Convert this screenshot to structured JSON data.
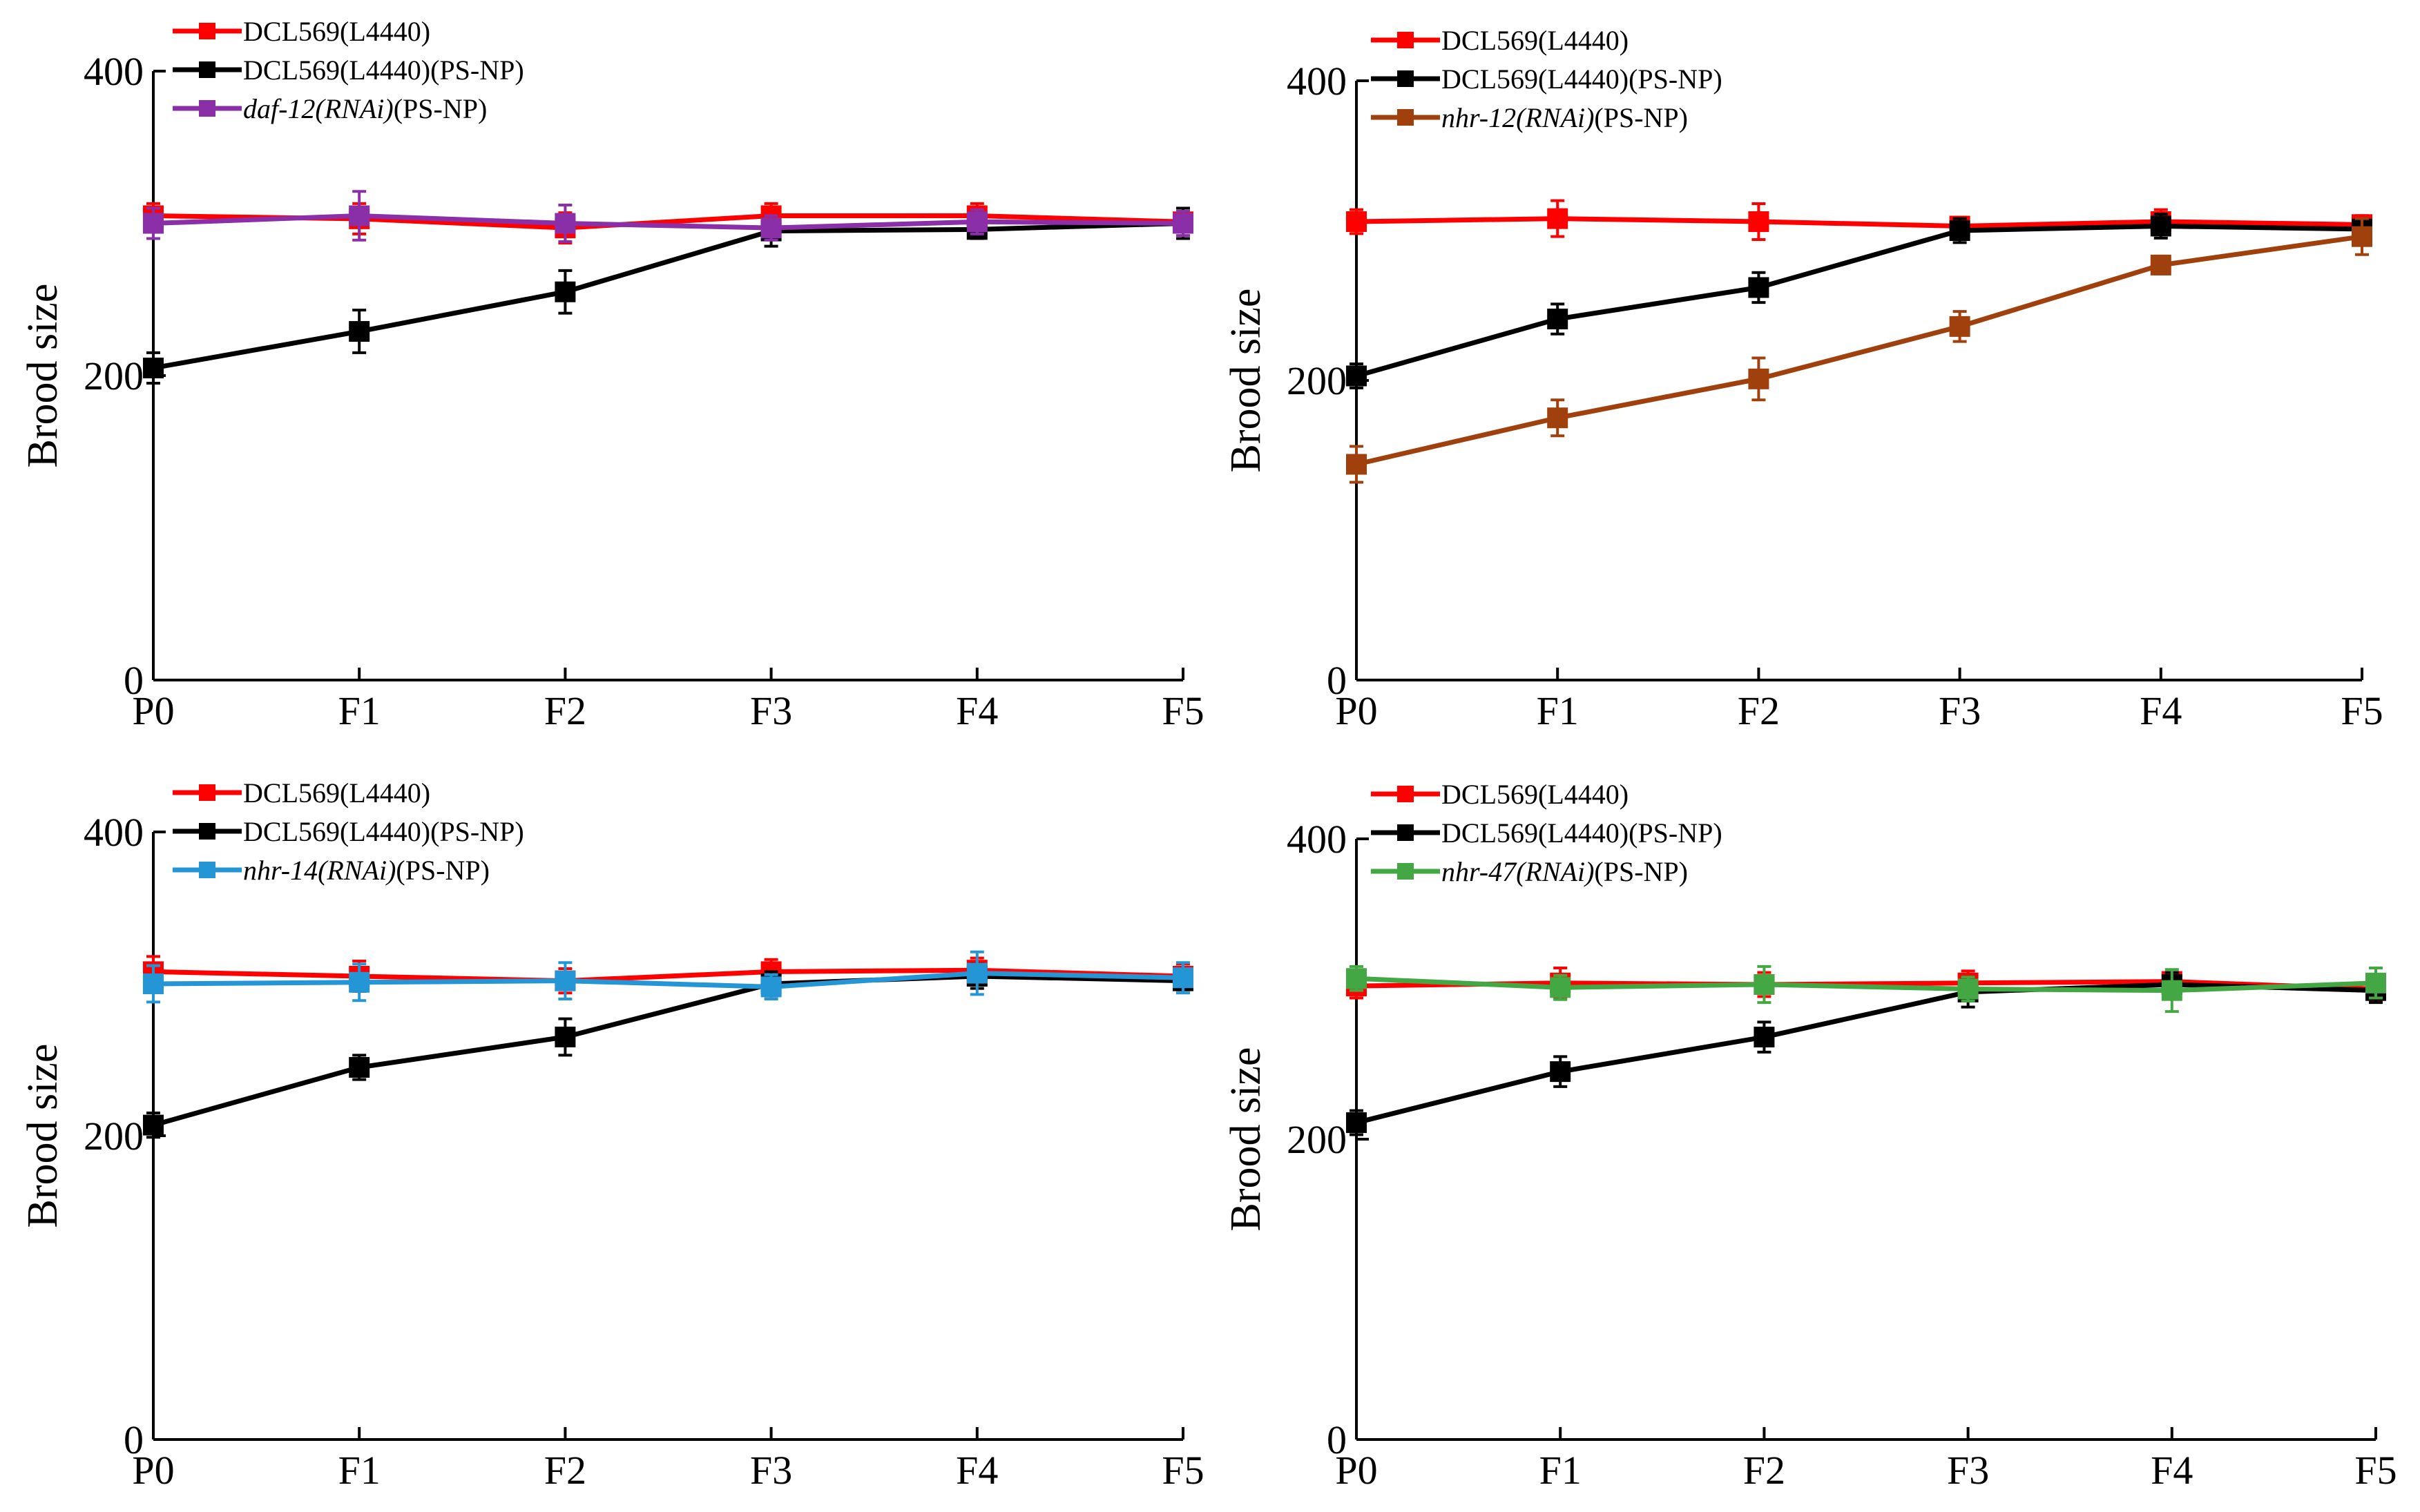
{
  "colors": {
    "control": "#ff0000",
    "psnp": "#000000",
    "daf12": "#8b2fa8",
    "nhr12": "#a0410d",
    "nhr14": "#2496d6",
    "nhr47": "#43a843"
  },
  "chart_data": [
    {
      "type": "line",
      "categories": [
        "P0",
        "F1",
        "F2",
        "F3",
        "F4",
        "F5"
      ],
      "ylabel": "Brood size",
      "ylim": [
        0,
        400
      ],
      "yticks": [
        0,
        200,
        400
      ],
      "grid": false,
      "legend_position": "top-left",
      "series": [
        {
          "name": "DCL569(L4440)",
          "name_italic": "",
          "name_rest": "DCL569(L4440)",
          "color": "#ff0000",
          "values": [
            305,
            303,
            297,
            305,
            305,
            301
          ],
          "errors": [
            8,
            10,
            10,
            8,
            8,
            6
          ]
        },
        {
          "name": "DCL569(L4440)(PS-NP)",
          "name_italic": "",
          "name_rest": "DCL569(L4440)(PS-NP)",
          "color": "#000000",
          "values": [
            205,
            229,
            255,
            295,
            296,
            300
          ],
          "errors": [
            10,
            14,
            14,
            10,
            6,
            10
          ]
        },
        {
          "name": "daf-12(RNAi)(PS-NP)",
          "name_italic": "daf-12(RNAi)",
          "name_rest": "(PS-NP)",
          "color": "#8b2fa8",
          "values": [
            300,
            305,
            300,
            297,
            301,
            300
          ],
          "errors": [
            10,
            16,
            12,
            8,
            8,
            8
          ]
        }
      ]
    },
    {
      "type": "line",
      "categories": [
        "P0",
        "F1",
        "F2",
        "F3",
        "F4",
        "F5"
      ],
      "ylabel": "Brood size",
      "ylim": [
        0,
        400
      ],
      "yticks": [
        0,
        200,
        400
      ],
      "grid": false,
      "legend_position": "top-left",
      "series": [
        {
          "name": "DCL569(L4440)",
          "name_italic": "",
          "name_rest": "DCL569(L4440)",
          "color": "#ff0000",
          "values": [
            306,
            308,
            306,
            303,
            306,
            304
          ],
          "errors": [
            8,
            12,
            12,
            6,
            8,
            6
          ]
        },
        {
          "name": "DCL569(L4440)(PS-NP)",
          "name_italic": "",
          "name_rest": "DCL569(L4440)(PS-NP)",
          "color": "#000000",
          "values": [
            203,
            241,
            262,
            300,
            303,
            301
          ],
          "errors": [
            8,
            10,
            10,
            8,
            8,
            6
          ]
        },
        {
          "name": "nhr-12(RNAi)(PS-NP)",
          "name_italic": "nhr-12(RNAi)",
          "name_rest": "(PS-NP)",
          "color": "#a0410d",
          "values": [
            144,
            175,
            201,
            236,
            277,
            296
          ],
          "errors": [
            12,
            12,
            14,
            10,
            6,
            12
          ]
        }
      ]
    },
    {
      "type": "line",
      "categories": [
        "P0",
        "F1",
        "F2",
        "F3",
        "F4",
        "F5"
      ],
      "ylabel": "Brood size",
      "ylim": [
        0,
        400
      ],
      "yticks": [
        0,
        200,
        400
      ],
      "grid": false,
      "legend_position": "top-left",
      "series": [
        {
          "name": "DCL569(L4440)",
          "name_italic": "",
          "name_rest": "DCL569(L4440)",
          "color": "#ff0000",
          "values": [
            308,
            305,
            302,
            308,
            309,
            305
          ],
          "errors": [
            10,
            10,
            8,
            8,
            8,
            8
          ]
        },
        {
          "name": "DCL569(L4440)(PS-NP)",
          "name_italic": "",
          "name_rest": "DCL569(L4440)(PS-NP)",
          "color": "#000000",
          "values": [
            207,
            245,
            265,
            300,
            305,
            302
          ],
          "errors": [
            8,
            8,
            12,
            8,
            8,
            6
          ]
        },
        {
          "name": "nhr-14(RNAi)(PS-NP)",
          "name_italic": "nhr-14(RNAi)",
          "name_rest": "(PS-NP)",
          "color": "#2496d6",
          "values": [
            300,
            301,
            302,
            298,
            307,
            304
          ],
          "errors": [
            12,
            12,
            12,
            8,
            14,
            10
          ]
        }
      ]
    },
    {
      "type": "line",
      "categories": [
        "P0",
        "F1",
        "F2",
        "F3",
        "F4",
        "F5"
      ],
      "ylabel": "Brood size",
      "ylim": [
        0,
        400
      ],
      "yticks": [
        0,
        200,
        400
      ],
      "grid": false,
      "legend_position": "top-left",
      "series": [
        {
          "name": "DCL569(L4440)",
          "name_italic": "",
          "name_rest": "DCL569(L4440)",
          "color": "#ff0000",
          "values": [
            302,
            304,
            303,
            304,
            305,
            300
          ],
          "errors": [
            8,
            10,
            8,
            8,
            6,
            8
          ]
        },
        {
          "name": "DCL569(L4440)(PS-NP)",
          "name_italic": "",
          "name_rest": "DCL569(L4440)(PS-NP)",
          "color": "#000000",
          "values": [
            211,
            245,
            268,
            298,
            303,
            299
          ],
          "errors": [
            8,
            10,
            10,
            10,
            8,
            8
          ]
        },
        {
          "name": "nhr-47(RNAi)(PS-NP)",
          "name_italic": "nhr-47(RNAi)",
          "name_rest": "(PS-NP)",
          "color": "#43a843",
          "values": [
            307,
            301,
            303,
            300,
            299,
            304
          ],
          "errors": [
            8,
            8,
            12,
            8,
            14,
            10
          ]
        }
      ]
    }
  ]
}
